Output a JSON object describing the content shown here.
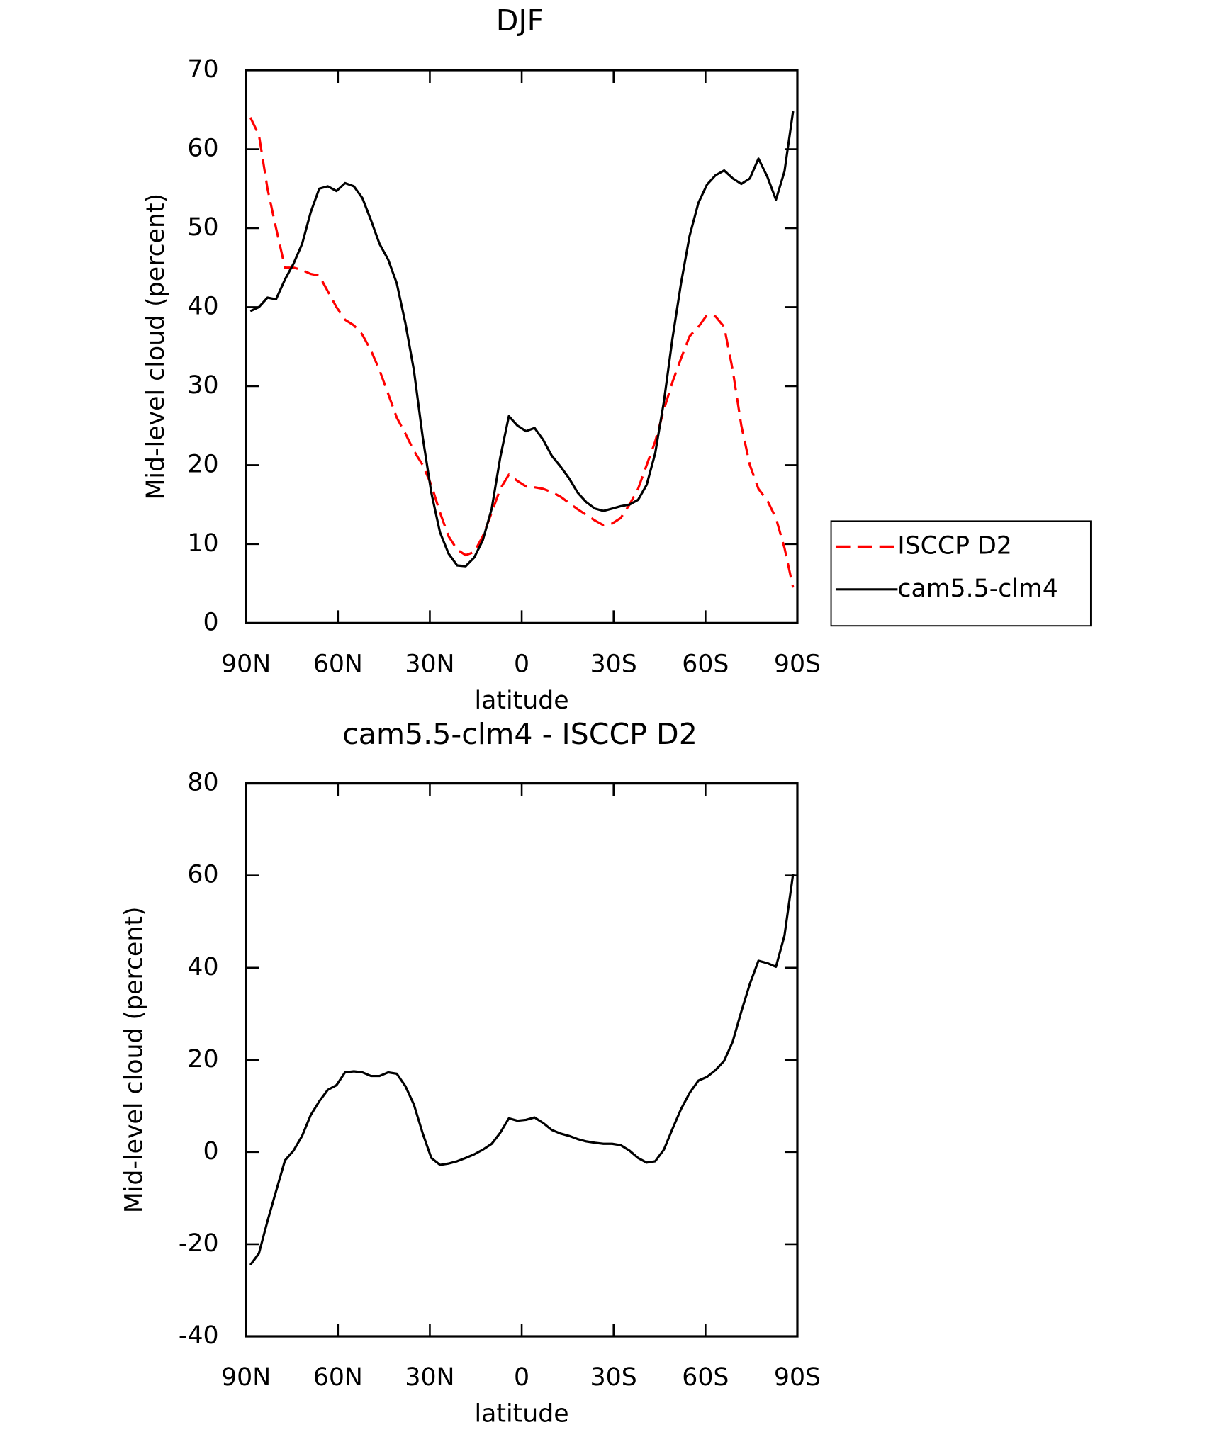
{
  "chart_data": [
    {
      "type": "line",
      "title": "DJF",
      "xlabel": "latitude",
      "ylabel": "Mid-level cloud (percent)",
      "x": [
        88.6,
        85.8,
        83.0,
        80.2,
        77.3,
        74.5,
        71.7,
        68.9,
        66.1,
        63.3,
        60.5,
        57.7,
        54.8,
        52.0,
        49.2,
        46.4,
        43.6,
        40.8,
        38.0,
        35.2,
        32.3,
        29.5,
        26.7,
        23.9,
        21.1,
        18.3,
        15.5,
        12.7,
        9.8,
        7.0,
        4.2,
        1.4,
        -1.4,
        -4.2,
        -7.0,
        -9.8,
        -12.7,
        -15.5,
        -18.3,
        -21.1,
        -23.9,
        -26.7,
        -29.5,
        -32.3,
        -35.2,
        -38.0,
        -40.8,
        -43.6,
        -46.4,
        -49.2,
        -52.0,
        -54.8,
        -57.7,
        -60.5,
        -63.3,
        -66.1,
        -68.9,
        -71.7,
        -74.5,
        -77.3,
        -80.2,
        -83.0,
        -85.8,
        -88.6
      ],
      "series": [
        {
          "name": "ISCCP D2",
          "color": "#ff0000",
          "linestyle": "dashed",
          "values": [
            64,
            61.8,
            55,
            50,
            45,
            45,
            44.7,
            44.2,
            44,
            42,
            40,
            38.4,
            37.7,
            36.5,
            34.5,
            32,
            29,
            26,
            24,
            21.8,
            20,
            17.5,
            14,
            11,
            9.3,
            8.6,
            9,
            11,
            14,
            17,
            18.8,
            18,
            17.3,
            17.2,
            17,
            16.6,
            16,
            15.2,
            14.4,
            13.7,
            13,
            12.4,
            12.6,
            13.3,
            15,
            17,
            20,
            23,
            27,
            30.5,
            33.5,
            36.3,
            37.5,
            39,
            38.8,
            37.5,
            32,
            25,
            20,
            17,
            15.5,
            13.3,
            9.5,
            4.5
          ]
        },
        {
          "name": "cam5.5-clm4",
          "color": "#000000",
          "linestyle": "solid",
          "values": [
            39.5,
            40,
            41.2,
            41,
            43.5,
            45.5,
            48,
            52,
            55,
            55.3,
            54.7,
            55.7,
            55.3,
            53.8,
            51,
            48,
            46,
            43,
            38,
            32,
            23.5,
            16.5,
            11.5,
            8.8,
            7.3,
            7.2,
            8.3,
            10.5,
            14.5,
            21,
            26.2,
            25,
            24.3,
            24.7,
            23.2,
            21.2,
            19.8,
            18.3,
            16.5,
            15.3,
            14.5,
            14.2,
            14.5,
            14.8,
            15,
            15.6,
            17.5,
            21.5,
            28,
            36,
            43,
            49,
            53.2,
            55.5,
            56.7,
            57.3,
            56.3,
            55.6,
            56.3,
            58.8,
            56.5,
            53.6,
            57.2,
            64.8
          ]
        }
      ],
      "xlim": [
        90,
        -90
      ],
      "xticks": [
        {
          "value": 90,
          "label": "90N"
        },
        {
          "value": 60,
          "label": "60N"
        },
        {
          "value": 30,
          "label": "30N"
        },
        0,
        {
          "value": -30,
          "label": "30S"
        },
        {
          "value": -60,
          "label": "60S"
        },
        {
          "value": -90,
          "label": "90S"
        }
      ],
      "ylim": [
        0,
        70
      ],
      "yticks": [
        0,
        10,
        20,
        30,
        40,
        50,
        60,
        70
      ],
      "legend": "right"
    },
    {
      "type": "line",
      "title": "cam5.5-clm4 - ISCCP D2",
      "xlabel": "latitude",
      "ylabel": "Mid-level cloud (percent)",
      "x": [
        88.6,
        85.8,
        83.0,
        80.2,
        77.3,
        74.5,
        71.7,
        68.9,
        66.1,
        63.3,
        60.5,
        57.7,
        54.8,
        52.0,
        49.2,
        46.4,
        43.6,
        40.8,
        38.0,
        35.2,
        32.3,
        29.5,
        26.7,
        23.9,
        21.1,
        18.3,
        15.5,
        12.7,
        9.8,
        7.0,
        4.2,
        1.4,
        -1.4,
        -4.2,
        -7.0,
        -9.8,
        -12.7,
        -15.5,
        -18.3,
        -21.1,
        -23.9,
        -26.7,
        -29.5,
        -32.3,
        -35.2,
        -38.0,
        -40.8,
        -43.6,
        -46.4,
        -49.2,
        -52.0,
        -54.8,
        -57.7,
        -60.5,
        -63.3,
        -66.1,
        -68.9,
        -71.7,
        -74.5,
        -77.3,
        -80.2,
        -83.0,
        -85.8,
        -88.6
      ],
      "values": [
        -24.5,
        -22,
        -15,
        -8.5,
        -1.8,
        0.3,
        3.5,
        8,
        11,
        13.5,
        14.5,
        17.3,
        17.5,
        17.3,
        16.5,
        16.5,
        17.3,
        17,
        14.3,
        10.3,
        4,
        -1.3,
        -2.8,
        -2.5,
        -2,
        -1.3,
        -0.5,
        0.5,
        1.8,
        4.2,
        7.3,
        6.8,
        7,
        7.5,
        6.3,
        4.8,
        4,
        3.5,
        2.8,
        2.3,
        2,
        1.8,
        1.8,
        1.5,
        0.3,
        -1.3,
        -2.3,
        -2,
        0.5,
        5,
        9.3,
        12.8,
        15.5,
        16.3,
        17.8,
        19.8,
        24,
        30.5,
        36.5,
        41.5,
        41,
        40.2,
        47,
        60.3
      ],
      "color": "#000000",
      "xlim": [
        90,
        -90
      ],
      "xticks": [
        {
          "value": 90,
          "label": "90N"
        },
        {
          "value": 60,
          "label": "60N"
        },
        {
          "value": 30,
          "label": "30N"
        },
        0,
        {
          "value": -30,
          "label": "30S"
        },
        {
          "value": -60,
          "label": "60S"
        },
        {
          "value": -90,
          "label": "90S"
        }
      ],
      "ylim": [
        -40,
        80
      ],
      "yticks": [
        -40,
        -20,
        0,
        20,
        40,
        60,
        80
      ]
    }
  ]
}
